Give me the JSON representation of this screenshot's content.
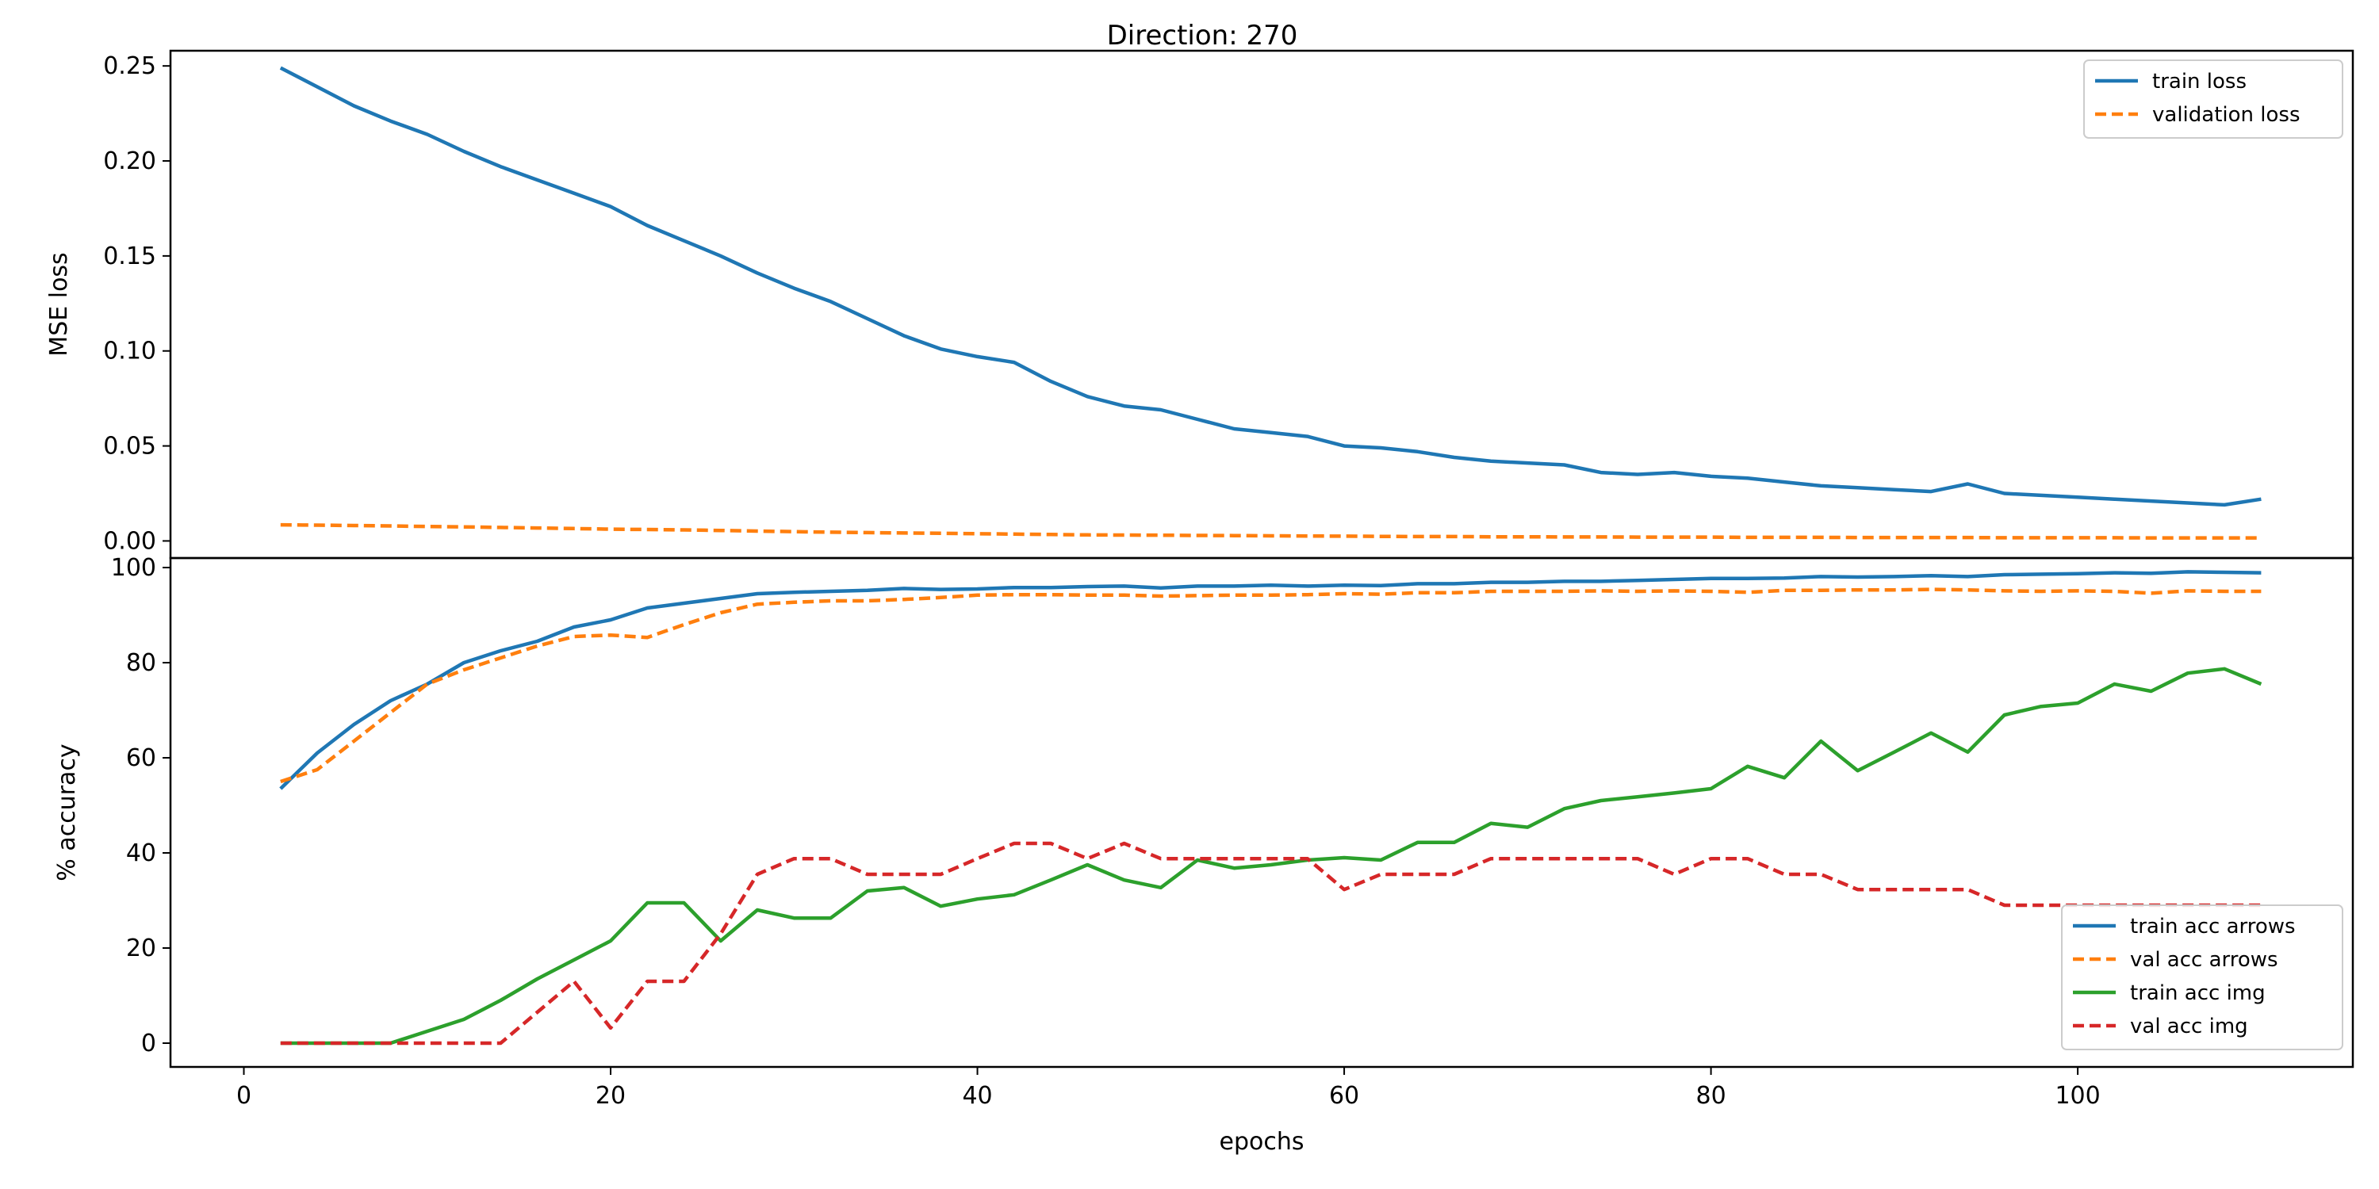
{
  "chart_data": [
    {
      "type": "line",
      "title": "Direction: 270",
      "xlabel": "",
      "ylabel": "MSE loss",
      "xlim": [
        -4,
        115
      ],
      "ylim": [
        -0.009,
        0.258
      ],
      "yticks": [
        0.0,
        0.05,
        0.1,
        0.15,
        0.2,
        0.25
      ],
      "ytick_labels": [
        "0.00",
        "0.05",
        "0.10",
        "0.15",
        "0.20",
        "0.25"
      ],
      "legend_position": "top-right",
      "grid": false,
      "x": [
        2,
        4,
        6,
        8,
        10,
        12,
        14,
        16,
        18,
        20,
        22,
        24,
        26,
        28,
        30,
        32,
        34,
        36,
        38,
        40,
        42,
        44,
        46,
        48,
        50,
        52,
        54,
        56,
        58,
        60,
        62,
        64,
        66,
        68,
        70,
        72,
        74,
        76,
        78,
        80,
        82,
        84,
        86,
        88,
        90,
        92,
        94,
        96,
        98,
        100,
        102,
        104,
        106,
        108,
        110
      ],
      "series": [
        {
          "name": "train loss",
          "color": "#1f77b4",
          "style": "solid",
          "values": [
            0.249,
            0.239,
            0.229,
            0.221,
            0.214,
            0.205,
            0.197,
            0.19,
            0.183,
            0.176,
            0.166,
            0.158,
            0.15,
            0.141,
            0.133,
            0.126,
            0.117,
            0.108,
            0.101,
            0.097,
            0.094,
            0.084,
            0.076,
            0.071,
            0.069,
            0.064,
            0.059,
            0.057,
            0.055,
            0.05,
            0.049,
            0.047,
            0.044,
            0.042,
            0.041,
            0.04,
            0.036,
            0.035,
            0.036,
            0.034,
            0.033,
            0.031,
            0.029,
            0.028,
            0.027,
            0.026,
            0.03,
            0.025,
            0.024,
            0.023,
            0.022,
            0.021,
            0.02,
            0.019,
            0.022
          ]
        },
        {
          "name": "validation loss",
          "color": "#ff7f0e",
          "style": "dashed",
          "values": [
            0.0085,
            0.0083,
            0.0081,
            0.0079,
            0.0076,
            0.0074,
            0.0071,
            0.0068,
            0.0065,
            0.0062,
            0.006,
            0.0058,
            0.0055,
            0.0052,
            0.0049,
            0.0046,
            0.0044,
            0.0042,
            0.004,
            0.0038,
            0.0036,
            0.0034,
            0.0032,
            0.0031,
            0.003,
            0.0029,
            0.0028,
            0.0027,
            0.0026,
            0.0025,
            0.0024,
            0.0023,
            0.0023,
            0.0022,
            0.0022,
            0.0021,
            0.0021,
            0.002,
            0.002,
            0.002,
            0.0019,
            0.0019,
            0.0019,
            0.0018,
            0.0018,
            0.0018,
            0.0018,
            0.0017,
            0.0017,
            0.0017,
            0.0017,
            0.0016,
            0.0016,
            0.0016,
            0.0016
          ]
        }
      ]
    },
    {
      "type": "line",
      "title": "",
      "xlabel": "epochs",
      "ylabel": "% accuracy",
      "xlim": [
        -4,
        115
      ],
      "ylim": [
        -5,
        102
      ],
      "xticks": [
        0,
        20,
        40,
        60,
        80,
        100
      ],
      "xtick_labels": [
        "0",
        "20",
        "40",
        "60",
        "80",
        "100"
      ],
      "yticks": [
        0,
        20,
        40,
        60,
        80,
        100
      ],
      "ytick_labels": [
        "0",
        "20",
        "40",
        "60",
        "80",
        "100"
      ],
      "legend_position": "bottom-right",
      "grid": false,
      "x": [
        2,
        4,
        6,
        8,
        10,
        12,
        14,
        16,
        18,
        20,
        22,
        24,
        26,
        28,
        30,
        32,
        34,
        36,
        38,
        40,
        42,
        44,
        46,
        48,
        50,
        52,
        54,
        56,
        58,
        60,
        62,
        64,
        66,
        68,
        70,
        72,
        74,
        76,
        78,
        80,
        82,
        84,
        86,
        88,
        90,
        92,
        94,
        96,
        98,
        100,
        102,
        104,
        106,
        108,
        110
      ],
      "series": [
        {
          "name": "train acc arrows",
          "color": "#1f77b4",
          "style": "solid",
          "values": [
            53.5,
            61,
            67,
            72,
            75.5,
            80,
            82.5,
            84.5,
            87.5,
            89,
            91.5,
            92.5,
            93.5,
            94.5,
            94.8,
            95,
            95.2,
            95.6,
            95.4,
            95.5,
            95.8,
            95.8,
            96,
            96.1,
            95.7,
            96.1,
            96.1,
            96.3,
            96.1,
            96.3,
            96.2,
            96.6,
            96.6,
            96.9,
            96.9,
            97.1,
            97.1,
            97.3,
            97.5,
            97.7,
            97.7,
            97.8,
            98.1,
            98,
            98.1,
            98.3,
            98.1,
            98.5,
            98.6,
            98.7,
            98.9,
            98.8,
            99.1,
            99,
            98.9
          ]
        },
        {
          "name": "val acc arrows",
          "color": "#ff7f0e",
          "style": "dashed",
          "values": [
            55,
            57.5,
            63.5,
            69.5,
            75.5,
            78.5,
            81,
            83.5,
            85.5,
            85.8,
            85.3,
            88,
            90.5,
            92.3,
            92.7,
            93,
            93,
            93.3,
            93.7,
            94.2,
            94.3,
            94.3,
            94.2,
            94.2,
            94,
            94.1,
            94.2,
            94.2,
            94.3,
            94.5,
            94.4,
            94.7,
            94.7,
            95,
            95,
            95,
            95.1,
            95,
            95.1,
            95,
            94.8,
            95.2,
            95.2,
            95.3,
            95.3,
            95.4,
            95.3,
            95.1,
            95,
            95.1,
            95,
            94.6,
            95.1,
            95,
            95
          ]
        },
        {
          "name": "train acc img",
          "color": "#2ca02c",
          "style": "solid",
          "values": [
            0,
            0,
            0,
            0,
            2.5,
            5,
            9,
            13.5,
            17.5,
            21.5,
            29.5,
            29.5,
            21.5,
            28,
            26.3,
            26.3,
            32,
            32.7,
            28.8,
            30.3,
            31.2,
            34.3,
            37.5,
            34.3,
            32.7,
            38.5,
            36.8,
            37.5,
            38.5,
            39,
            38.5,
            42.2,
            42.2,
            46.2,
            45.4,
            49.3,
            51,
            51.8,
            52.6,
            53.5,
            58.2,
            55.8,
            63.5,
            57.3,
            61.2,
            65.2,
            61.2,
            69,
            70.8,
            71.5,
            75.5,
            74,
            77.8,
            78.7,
            75.5
          ]
        },
        {
          "name": "val acc img",
          "color": "#d62728",
          "style": "dashed",
          "values": [
            0,
            0,
            0,
            0,
            0,
            0,
            0,
            6.5,
            13,
            3.2,
            13,
            13,
            23,
            35.5,
            38.8,
            38.8,
            35.5,
            35.5,
            35.5,
            38.8,
            42,
            42,
            38.8,
            42,
            38.8,
            38.8,
            38.8,
            38.8,
            38.8,
            32.3,
            35.5,
            35.5,
            35.5,
            38.8,
            38.8,
            38.8,
            38.8,
            38.8,
            35.5,
            38.8,
            38.8,
            35.5,
            35.5,
            32.3,
            32.3,
            32.3,
            32.3,
            29,
            29,
            29,
            29,
            29,
            29,
            29,
            29
          ]
        }
      ]
    }
  ]
}
